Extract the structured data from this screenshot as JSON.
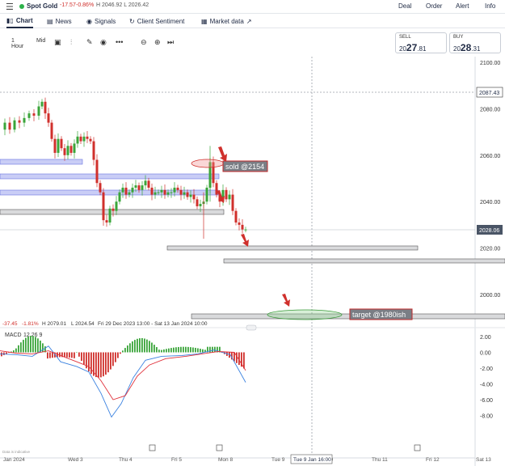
{
  "header": {
    "instrument": "Spot Gold",
    "change": "-17.57",
    "change_pct": "-0.86%",
    "high_low": "H 2046.92  L 2026.42",
    "menu_links": [
      "Deal",
      "Order",
      "Alert",
      "Info"
    ]
  },
  "tabs": [
    {
      "label": "Chart",
      "icon": "candles-icon"
    },
    {
      "label": "News",
      "icon": "news-icon"
    },
    {
      "label": "Signals",
      "icon": "signal-icon"
    },
    {
      "label": "Client Sentiment",
      "icon": "sentiment-icon"
    },
    {
      "label": "Market data",
      "icon": "external-link-icon"
    }
  ],
  "toolbar": {
    "interval": "1 Hour",
    "price_type": "Mid",
    "more": "•••"
  },
  "prices": {
    "sell_label": "SELL",
    "sell_prefix": "20",
    "sell_big": "27",
    "sell_suffix": ".81",
    "buy_label": "BUY",
    "buy_prefix": "20",
    "buy_big": "28",
    "buy_suffix": ".31"
  },
  "chart_data": {
    "type": "candlestick",
    "price_axis_ticks": [
      "2100.00",
      "2080.00",
      "2060.00",
      "2040.00",
      "2020.00",
      "2000.00"
    ],
    "price_axis_values": [
      2100,
      2080,
      2060,
      2040,
      2020,
      2000
    ],
    "ylim": [
      1983,
      2104
    ],
    "current_price_label": "2028.06",
    "current_price": 2028.06,
    "reference_price_label": "2087.43",
    "reference_price": 2087.43,
    "annotations": [
      {
        "text": "sold @2154",
        "color": "#c0282a"
      },
      {
        "text": "target @1980ish",
        "color": "#c0282a"
      }
    ],
    "ohlc_info": {
      "change": "-37.45",
      "change_pct": "-1.81%",
      "high": "H 2079.01",
      "low": "L 2024.54",
      "range": "Fri 29 Dec 2023 13:00 - Sat 13 Jan 2024 10:00"
    },
    "macd": {
      "label": "MACD",
      "params": "12  26  9",
      "ticks": [
        "2.00",
        "0.00",
        "-2.00",
        "-4.00",
        "-6.00",
        "-8.00"
      ],
      "tick_values": [
        2,
        0,
        -2,
        -4,
        -6,
        -8
      ],
      "ylim": [
        -9.5,
        3
      ]
    },
    "x_axis_labels": [
      "Jan 2024",
      "Wed 3",
      "Thu 4",
      "Fri 5",
      "Mon 8",
      "Tue 9",
      "Wed 10",
      "Thu 11",
      "Fri 12",
      "Sat 13"
    ],
    "crosshair_label": "Tue 9 Jan 16:00",
    "data_note": "Data is indicative"
  }
}
